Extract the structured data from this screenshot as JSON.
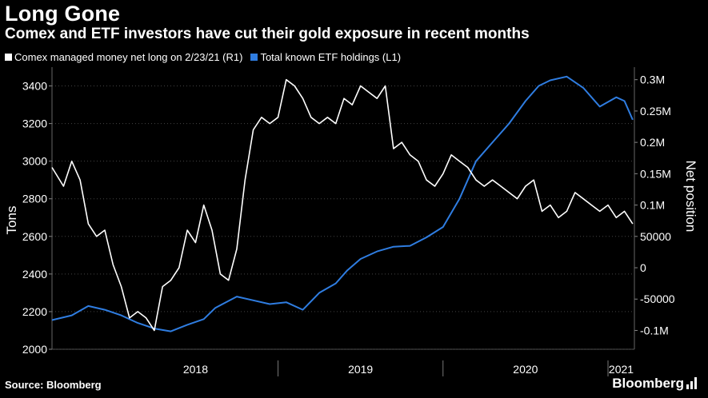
{
  "title": "Long Gone",
  "subtitle": "Comex and ETF investors have cut their gold exposure in recent months",
  "legend": [
    {
      "label": "Comex managed money net long on 2/23/21 (R1)",
      "color": "#ffffff"
    },
    {
      "label": "Total known ETF holdings (L1)",
      "color": "#2f7de1"
    }
  ],
  "source": "Source: Bloomberg",
  "brand": "Bloomberg",
  "chart_data": {
    "type": "line",
    "left_axis": {
      "label": "Tons",
      "min": 2000,
      "max": 3500,
      "ticks": [
        2000,
        2200,
        2400,
        2600,
        2800,
        3000,
        3200,
        3400
      ]
    },
    "right_axis": {
      "label": "Net position",
      "min": -130000,
      "max": 320000,
      "ticks": [
        -100000,
        -50000,
        0,
        50000,
        100000,
        150000,
        200000,
        250000,
        300000
      ],
      "tick_labels": [
        "-0.1M",
        "-50000",
        "0",
        "50000",
        "0.1M",
        "0.15M",
        "0.2M",
        "0.25M",
        "0.3M"
      ]
    },
    "x_axis": {
      "start": 2017.63,
      "end": 2021.16,
      "year_labels": [
        {
          "label": "2018",
          "pos": 2018.5
        },
        {
          "label": "2019",
          "pos": 2019.5
        },
        {
          "label": "2020",
          "pos": 2020.5
        },
        {
          "label": "2021",
          "pos": 2021.08
        }
      ],
      "dividers": [
        2019.0,
        2020.0,
        2021.0
      ]
    },
    "grid": true,
    "series": [
      {
        "name": "Total known ETF holdings (L1)",
        "axis": "left",
        "color": "#2f7de1",
        "x": [
          2017.63,
          2017.75,
          2017.85,
          2017.95,
          2018.05,
          2018.15,
          2018.25,
          2018.35,
          2018.45,
          2018.55,
          2018.62,
          2018.75,
          2018.85,
          2018.95,
          2019.05,
          2019.15,
          2019.25,
          2019.35,
          2019.42,
          2019.5,
          2019.6,
          2019.7,
          2019.8,
          2019.9,
          2020.0,
          2020.1,
          2020.2,
          2020.3,
          2020.4,
          2020.5,
          2020.58,
          2020.65,
          2020.75,
          2020.85,
          2020.95,
          2021.05,
          2021.1,
          2021.15
        ],
        "values": [
          2155,
          2180,
          2230,
          2210,
          2180,
          2140,
          2110,
          2095,
          2130,
          2160,
          2220,
          2280,
          2260,
          2240,
          2250,
          2210,
          2300,
          2350,
          2420,
          2480,
          2520,
          2545,
          2550,
          2595,
          2650,
          2800,
          3000,
          3100,
          3200,
          3320,
          3400,
          3430,
          3450,
          3390,
          3290,
          3340,
          3320,
          3220
        ]
      },
      {
        "name": "Comex managed money net long on 2/23/21 (R1)",
        "axis": "right",
        "color": "#ffffff",
        "x": [
          2017.63,
          2017.7,
          2017.75,
          2017.8,
          2017.85,
          2017.9,
          2017.95,
          2018.0,
          2018.05,
          2018.1,
          2018.15,
          2018.2,
          2018.25,
          2018.3,
          2018.35,
          2018.4,
          2018.45,
          2018.5,
          2018.55,
          2018.6,
          2018.65,
          2018.7,
          2018.75,
          2018.8,
          2018.85,
          2018.9,
          2018.95,
          2019.0,
          2019.05,
          2019.1,
          2019.15,
          2019.2,
          2019.25,
          2019.3,
          2019.35,
          2019.4,
          2019.45,
          2019.5,
          2019.55,
          2019.6,
          2019.65,
          2019.7,
          2019.75,
          2019.8,
          2019.85,
          2019.9,
          2019.95,
          2020.0,
          2020.05,
          2020.1,
          2020.15,
          2020.2,
          2020.25,
          2020.3,
          2020.35,
          2020.4,
          2020.45,
          2020.5,
          2020.55,
          2020.6,
          2020.65,
          2020.7,
          2020.75,
          2020.8,
          2020.85,
          2020.9,
          2020.95,
          2021.0,
          2021.05,
          2021.1,
          2021.15
        ],
        "values": [
          160000,
          130000,
          170000,
          140000,
          70000,
          50000,
          60000,
          5000,
          -30000,
          -80000,
          -70000,
          -80000,
          -100000,
          -30000,
          -20000,
          0,
          60000,
          40000,
          100000,
          60000,
          -10000,
          -20000,
          30000,
          140000,
          220000,
          240000,
          230000,
          240000,
          300000,
          290000,
          270000,
          240000,
          230000,
          240000,
          230000,
          270000,
          260000,
          290000,
          280000,
          270000,
          290000,
          190000,
          200000,
          180000,
          170000,
          140000,
          130000,
          150000,
          180000,
          170000,
          160000,
          140000,
          130000,
          140000,
          130000,
          120000,
          110000,
          130000,
          140000,
          90000,
          100000,
          80000,
          90000,
          120000,
          110000,
          100000,
          90000,
          100000,
          80000,
          90000,
          70000
        ]
      }
    ]
  }
}
